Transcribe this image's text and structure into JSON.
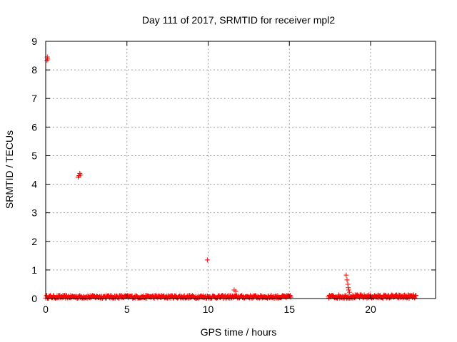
{
  "chart_data": {
    "type": "scatter",
    "title": "Day 111 of 2017, SRMTID for receiver mpl2",
    "xlabel": "GPS time / hours",
    "ylabel": "SRMTID / TECUs",
    "xlim": [
      0,
      24
    ],
    "ylim": [
      0,
      9
    ],
    "xticks": [
      0,
      5,
      10,
      15,
      20
    ],
    "yticks": [
      0,
      1,
      2,
      3,
      4,
      5,
      6,
      7,
      8,
      9
    ],
    "grid": true,
    "marker": "plus",
    "series": [
      {
        "color": "#ff0000",
        "segments": [
          {
            "x_start": 0.0,
            "x_end": 15.1,
            "baseline": 0.06,
            "noise": 0.05
          },
          {
            "x_start": 17.4,
            "x_end": 22.8,
            "baseline": 0.07,
            "noise": 0.06
          }
        ],
        "points": [
          {
            "x": 0.1,
            "y": 8.45
          },
          {
            "x": 0.12,
            "y": 8.38
          },
          {
            "x": 0.08,
            "y": 8.33
          },
          {
            "x": 2.0,
            "y": 4.25
          },
          {
            "x": 2.05,
            "y": 4.3
          },
          {
            "x": 2.1,
            "y": 4.38
          },
          {
            "x": 2.15,
            "y": 4.32
          },
          {
            "x": 9.95,
            "y": 1.35
          },
          {
            "x": 11.6,
            "y": 0.3
          },
          {
            "x": 11.7,
            "y": 0.25
          },
          {
            "x": 18.5,
            "y": 0.82
          },
          {
            "x": 18.55,
            "y": 0.65
          },
          {
            "x": 18.6,
            "y": 0.5
          },
          {
            "x": 18.62,
            "y": 0.38
          },
          {
            "x": 18.65,
            "y": 0.3
          },
          {
            "x": 18.7,
            "y": 0.22
          }
        ]
      }
    ]
  }
}
